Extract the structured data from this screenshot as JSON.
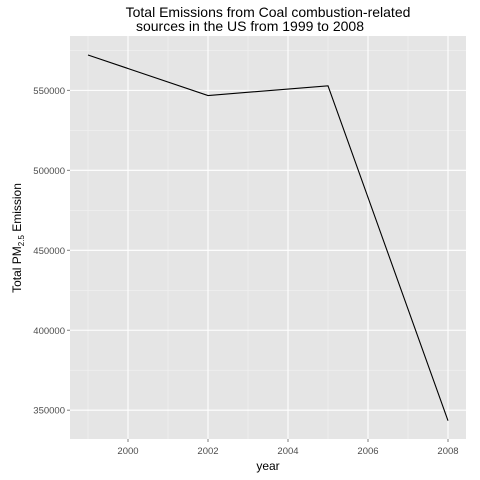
{
  "chart_data": {
    "type": "line",
    "title_lines": [
      "Total Emissions from Coal combustion-related",
      "sources in the US from 1999 to 2008"
    ],
    "xlabel": "year",
    "ylabel": "Total PM",
    "ylabel_sub": "2.5",
    "ylabel_suffix": " Emission",
    "x": [
      1999,
      2002,
      2005,
      2008
    ],
    "values": [
      572126,
      546789,
      552881,
      343432
    ],
    "xlim": [
      1998.55,
      2008.45
    ],
    "ylim": [
      332000,
      584000
    ],
    "x_ticks": [
      2000,
      2002,
      2004,
      2006,
      2008
    ],
    "x_tick_labels": [
      "2000",
      "2002",
      "2004",
      "2006",
      "2008"
    ],
    "y_ticks": [
      350000,
      400000,
      450000,
      500000,
      550000
    ],
    "y_tick_labels": [
      "350000",
      "400000",
      "450000",
      "500000",
      "550000"
    ],
    "grid": true,
    "line_color": "#000000",
    "panel_color": "#e5e5e5",
    "grid_color": "#ffffff"
  }
}
